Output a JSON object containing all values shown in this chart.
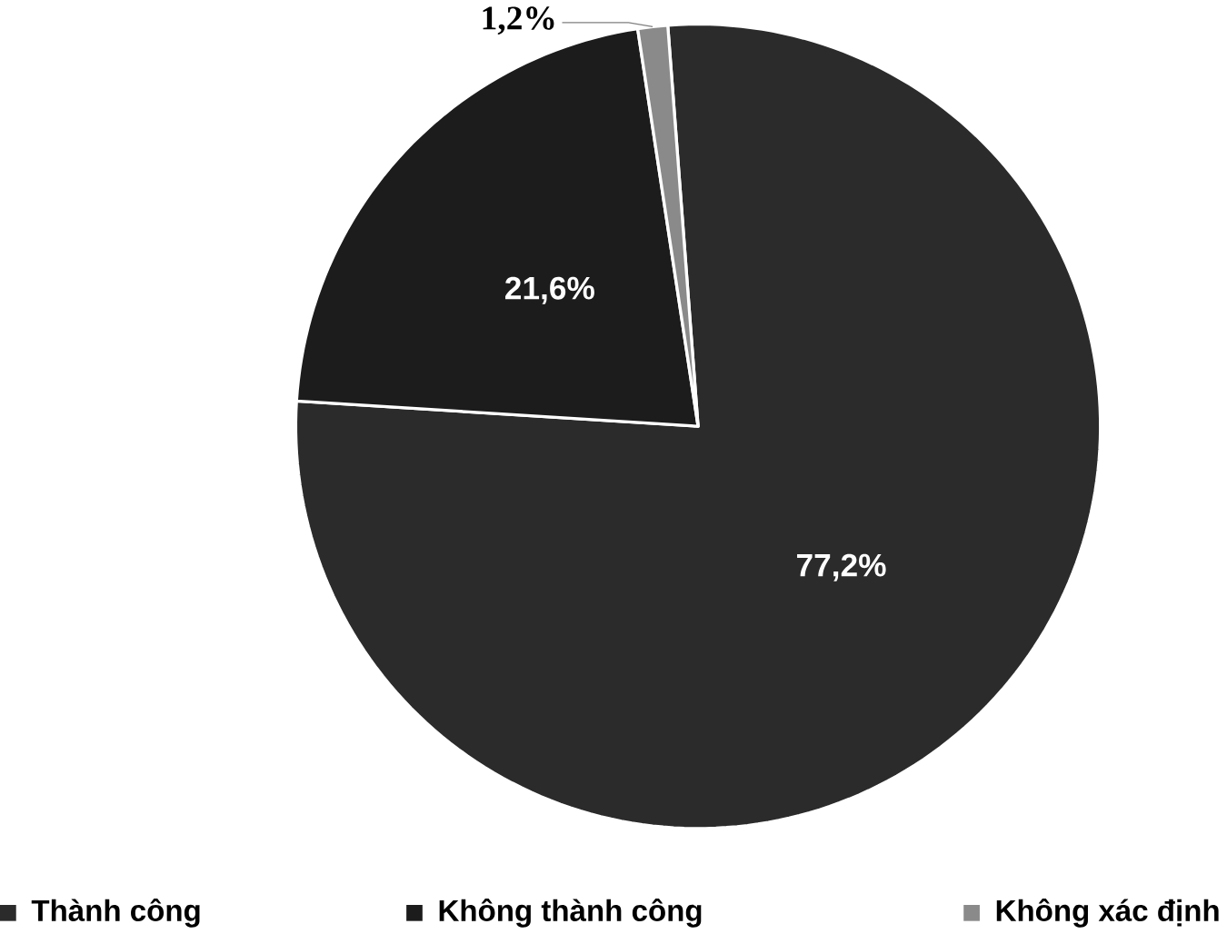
{
  "chart_data": {
    "type": "pie",
    "categories": [
      "Thành công",
      "Không thành công",
      "Không xác định"
    ],
    "values": [
      77.2,
      21.6,
      1.2
    ],
    "colors": [
      "#2b2b2b",
      "#1c1c1c",
      "#8a8a8a"
    ],
    "value_labels": [
      "77,2%",
      "21,6%",
      "1,2%"
    ],
    "legend": "bottom"
  }
}
